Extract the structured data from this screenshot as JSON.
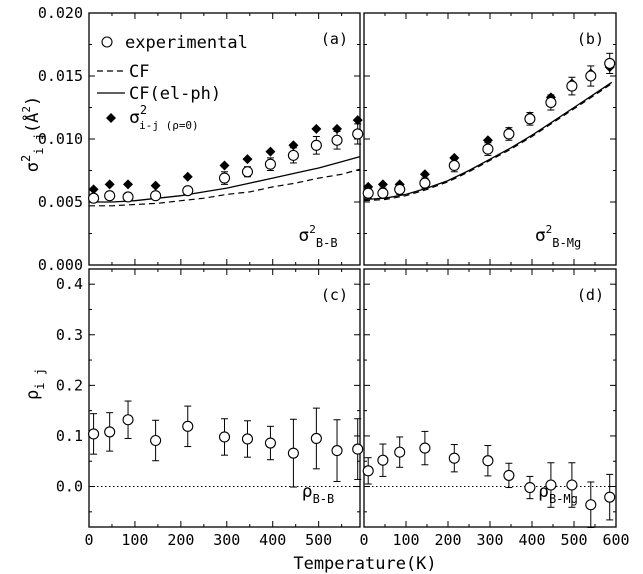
{
  "chart_data": {
    "type": "scatter",
    "x_axis": {
      "label": "Temperature(K)",
      "ticks": [
        "0",
        "100",
        "200",
        "300",
        "400",
        "500",
        "600"
      ],
      "xlim": [
        0,
        600
      ]
    },
    "panels": [
      {
        "id": "(a)",
        "ylabel_base": "σ",
        "ylabel_sup": "2",
        "ylabel_sub": "i j",
        "ylabel_unit": "(Å",
        "ylabel_unit_sup": "2",
        "ylabel_close": ")",
        "ylim": [
          0,
          0.02
        ],
        "yticks": [
          "0.000",
          "0.005",
          "0.010",
          "0.015",
          "0.020"
        ],
        "annotation_base": "σ",
        "annotation_sup": "2",
        "annotation_sub": "B-B",
        "legend": {
          "experimental": "experimental",
          "cf": "CF",
          "cf_elph": "CF(el-ph)",
          "diamond_base": "σ",
          "diamond_sup": "2",
          "diamond_sub": "i-j (ρ=0)"
        },
        "experimental": {
          "x": [
            10,
            45,
            85,
            145,
            215,
            295,
            345,
            395,
            445,
            495,
            540,
            585
          ],
          "y": [
            0.0053,
            0.0055,
            0.0054,
            0.0055,
            0.0059,
            0.0069,
            0.0074,
            0.008,
            0.0087,
            0.0095,
            0.0099,
            0.0104
          ],
          "err": [
            0.0003,
            0.0003,
            0.0003,
            0.0003,
            0.0003,
            0.0005,
            0.0004,
            0.0005,
            0.0006,
            0.0007,
            0.0007,
            0.0008
          ]
        },
        "diamonds": {
          "x": [
            10,
            45,
            85,
            145,
            215,
            295,
            345,
            395,
            445,
            495,
            540,
            585
          ],
          "y": [
            0.006,
            0.0064,
            0.0064,
            0.0063,
            0.007,
            0.0079,
            0.0084,
            0.009,
            0.0095,
            0.0108,
            0.0108,
            0.0115
          ]
        },
        "cf_line": {
          "x": [
            0,
            50,
            100,
            150,
            200,
            250,
            300,
            350,
            400,
            450,
            500,
            550,
            590
          ],
          "y": [
            0.0047,
            0.0047,
            0.0048,
            0.0049,
            0.0051,
            0.0053,
            0.0056,
            0.0058,
            0.0062,
            0.0065,
            0.0069,
            0.0072,
            0.0076
          ]
        },
        "cf_elph_line": {
          "x": [
            0,
            50,
            100,
            150,
            200,
            250,
            300,
            350,
            400,
            450,
            500,
            550,
            590
          ],
          "y": [
            0.005,
            0.005,
            0.0051,
            0.0053,
            0.0055,
            0.0058,
            0.0061,
            0.0065,
            0.0069,
            0.0073,
            0.0077,
            0.0082,
            0.0086
          ]
        }
      },
      {
        "id": "(b)",
        "ylim": [
          0,
          0.02
        ],
        "annotation_base": "σ",
        "annotation_sup": "2",
        "annotation_sub": "B-Mg",
        "experimental": {
          "x": [
            10,
            45,
            85,
            145,
            215,
            295,
            345,
            395,
            445,
            495,
            540,
            585
          ],
          "y": [
            0.0057,
            0.0057,
            0.006,
            0.0065,
            0.0079,
            0.0092,
            0.0104,
            0.0116,
            0.0129,
            0.0142,
            0.015,
            0.016
          ],
          "err": [
            0.0004,
            0.0004,
            0.0004,
            0.0004,
            0.0005,
            0.0005,
            0.0005,
            0.0005,
            0.0006,
            0.0007,
            0.0008,
            0.0008
          ]
        },
        "diamonds": {
          "x": [
            10,
            45,
            85,
            145,
            215,
            295,
            345,
            395,
            445,
            495,
            540,
            585
          ],
          "y": [
            0.0062,
            0.0064,
            0.0064,
            0.0072,
            0.0085,
            0.0099,
            0.0106,
            0.0118,
            0.0133,
            0.0144,
            0.0152,
            0.0157
          ]
        },
        "cf_line": {
          "x": [
            0,
            50,
            100,
            150,
            200,
            250,
            300,
            350,
            400,
            450,
            500,
            550,
            590
          ],
          "y": [
            0.0051,
            0.0052,
            0.0055,
            0.006,
            0.0066,
            0.0074,
            0.0083,
            0.0092,
            0.0102,
            0.0113,
            0.0124,
            0.0135,
            0.0144
          ]
        },
        "cf_elph_line": {
          "x": [
            0,
            50,
            100,
            150,
            200,
            250,
            300,
            350,
            400,
            450,
            500,
            550,
            590
          ],
          "y": [
            0.0052,
            0.0053,
            0.0056,
            0.0061,
            0.0067,
            0.0075,
            0.0084,
            0.0093,
            0.0103,
            0.0114,
            0.0125,
            0.0136,
            0.0145
          ]
        }
      },
      {
        "id": "(c)",
        "ylabel_base": "ρ",
        "ylabel_sub": "i j",
        "ylim": [
          -0.08,
          0.43
        ],
        "yticks": [
          "0.0",
          "0.1",
          "0.2",
          "0.3",
          "0.4"
        ],
        "annotation_base": "ρ",
        "annotation_sub": "B-B",
        "experimental": {
          "x": [
            10,
            45,
            85,
            145,
            215,
            295,
            345,
            395,
            445,
            495,
            540,
            585
          ],
          "y": [
            0.104,
            0.108,
            0.132,
            0.091,
            0.119,
            0.098,
            0.094,
            0.086,
            0.066,
            0.095,
            0.071,
            0.074
          ],
          "err": [
            0.04,
            0.038,
            0.037,
            0.04,
            0.04,
            0.036,
            0.036,
            0.033,
            0.067,
            0.06,
            0.061,
            0.06
          ]
        }
      },
      {
        "id": "(d)",
        "ylim": [
          -0.08,
          0.43
        ],
        "annotation_base": "ρ",
        "annotation_sub": "B-Mg",
        "experimental": {
          "x": [
            10,
            45,
            85,
            145,
            215,
            295,
            345,
            395,
            445,
            495,
            540,
            585
          ],
          "y": [
            0.031,
            0.052,
            0.068,
            0.076,
            0.056,
            0.051,
            0.022,
            -0.002,
            0.003,
            0.003,
            -0.036,
            -0.021
          ],
          "err": [
            0.026,
            0.032,
            0.03,
            0.033,
            0.027,
            0.03,
            0.024,
            0.022,
            0.044,
            0.044,
            0.045,
            0.045
          ]
        }
      }
    ]
  }
}
